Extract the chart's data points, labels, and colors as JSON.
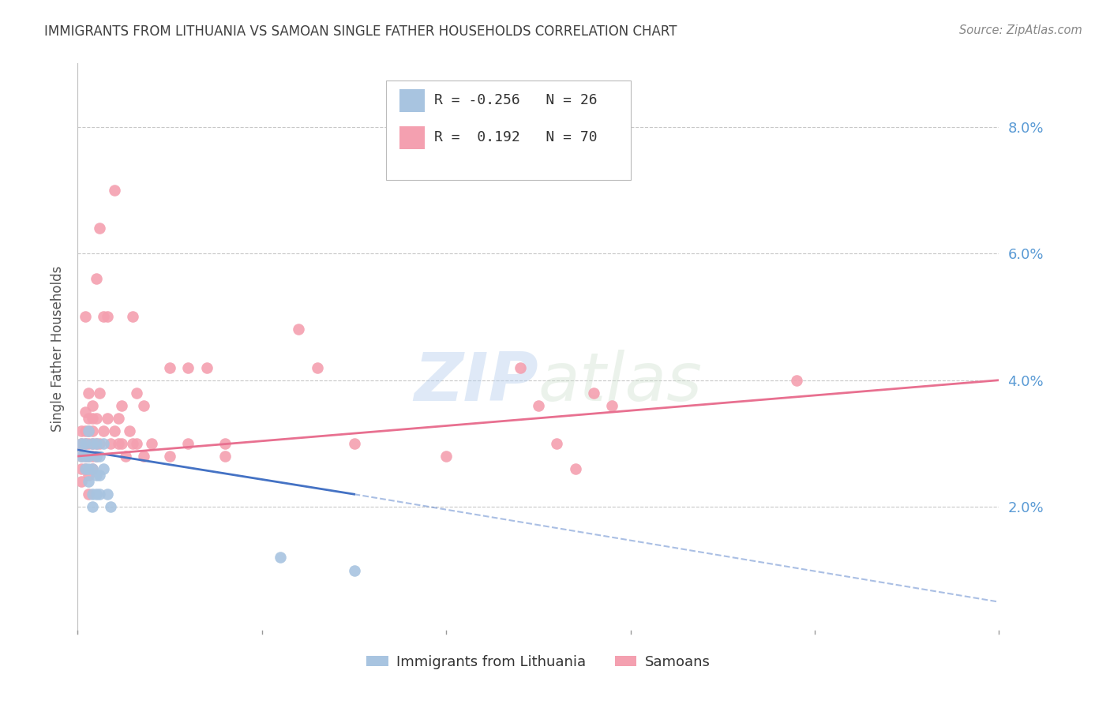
{
  "title": "IMMIGRANTS FROM LITHUANIA VS SAMOAN SINGLE FATHER HOUSEHOLDS CORRELATION CHART",
  "source": "Source: ZipAtlas.com",
  "ylabel": "Single Father Households",
  "ytick_labels": [
    "2.0%",
    "4.0%",
    "6.0%",
    "8.0%"
  ],
  "ytick_values": [
    0.02,
    0.04,
    0.06,
    0.08
  ],
  "xlim": [
    0.0,
    0.25
  ],
  "ylim": [
    0.0,
    0.09
  ],
  "blue_color": "#a8c4e0",
  "pink_color": "#f4a0b0",
  "blue_line_color": "#4472c4",
  "pink_line_color": "#e87090",
  "grid_color": "#c8c8c8",
  "title_color": "#404040",
  "axis_label_color": "#5b9bd5",
  "ylabel_color": "#555555",
  "blue_dots": [
    [
      0.001,
      0.03
    ],
    [
      0.001,
      0.028
    ],
    [
      0.002,
      0.026
    ],
    [
      0.002,
      0.03
    ],
    [
      0.002,
      0.028
    ],
    [
      0.003,
      0.032
    ],
    [
      0.003,
      0.028
    ],
    [
      0.003,
      0.026
    ],
    [
      0.003,
      0.024
    ],
    [
      0.004,
      0.03
    ],
    [
      0.004,
      0.026
    ],
    [
      0.004,
      0.022
    ],
    [
      0.004,
      0.02
    ],
    [
      0.005,
      0.03
    ],
    [
      0.005,
      0.028
    ],
    [
      0.005,
      0.025
    ],
    [
      0.005,
      0.022
    ],
    [
      0.006,
      0.028
    ],
    [
      0.006,
      0.025
    ],
    [
      0.006,
      0.022
    ],
    [
      0.007,
      0.03
    ],
    [
      0.007,
      0.026
    ],
    [
      0.008,
      0.022
    ],
    [
      0.009,
      0.02
    ],
    [
      0.055,
      0.012
    ],
    [
      0.075,
      0.01
    ]
  ],
  "pink_dots": [
    [
      0.001,
      0.03
    ],
    [
      0.001,
      0.032
    ],
    [
      0.001,
      0.028
    ],
    [
      0.001,
      0.026
    ],
    [
      0.001,
      0.024
    ],
    [
      0.002,
      0.035
    ],
    [
      0.002,
      0.032
    ],
    [
      0.002,
      0.03
    ],
    [
      0.002,
      0.028
    ],
    [
      0.002,
      0.05
    ],
    [
      0.002,
      0.026
    ],
    [
      0.003,
      0.038
    ],
    [
      0.003,
      0.034
    ],
    [
      0.003,
      0.032
    ],
    [
      0.003,
      0.03
    ],
    [
      0.003,
      0.028
    ],
    [
      0.003,
      0.025
    ],
    [
      0.003,
      0.022
    ],
    [
      0.004,
      0.036
    ],
    [
      0.004,
      0.034
    ],
    [
      0.004,
      0.032
    ],
    [
      0.004,
      0.03
    ],
    [
      0.004,
      0.028
    ],
    [
      0.004,
      0.026
    ],
    [
      0.005,
      0.056
    ],
    [
      0.005,
      0.034
    ],
    [
      0.005,
      0.03
    ],
    [
      0.005,
      0.028
    ],
    [
      0.006,
      0.064
    ],
    [
      0.006,
      0.038
    ],
    [
      0.006,
      0.03
    ],
    [
      0.007,
      0.05
    ],
    [
      0.007,
      0.032
    ],
    [
      0.008,
      0.05
    ],
    [
      0.008,
      0.034
    ],
    [
      0.009,
      0.03
    ],
    [
      0.01,
      0.07
    ],
    [
      0.01,
      0.032
    ],
    [
      0.011,
      0.034
    ],
    [
      0.011,
      0.03
    ],
    [
      0.012,
      0.036
    ],
    [
      0.012,
      0.03
    ],
    [
      0.013,
      0.028
    ],
    [
      0.014,
      0.032
    ],
    [
      0.015,
      0.05
    ],
    [
      0.015,
      0.03
    ],
    [
      0.016,
      0.038
    ],
    [
      0.016,
      0.03
    ],
    [
      0.018,
      0.036
    ],
    [
      0.018,
      0.028
    ],
    [
      0.02,
      0.03
    ],
    [
      0.025,
      0.042
    ],
    [
      0.025,
      0.028
    ],
    [
      0.03,
      0.042
    ],
    [
      0.03,
      0.03
    ],
    [
      0.035,
      0.042
    ],
    [
      0.04,
      0.03
    ],
    [
      0.04,
      0.028
    ],
    [
      0.06,
      0.048
    ],
    [
      0.065,
      0.042
    ],
    [
      0.075,
      0.03
    ],
    [
      0.1,
      0.028
    ],
    [
      0.12,
      0.042
    ],
    [
      0.125,
      0.036
    ],
    [
      0.13,
      0.03
    ],
    [
      0.135,
      0.026
    ],
    [
      0.14,
      0.038
    ],
    [
      0.145,
      0.036
    ],
    [
      0.195,
      0.04
    ]
  ],
  "blue_line": {
    "x0": 0.0,
    "y0": 0.029,
    "x1": 0.075,
    "y1": 0.022,
    "x1_dash": 0.25,
    "y1_dash": 0.005
  },
  "pink_line": {
    "x0": 0.0,
    "y0": 0.028,
    "x1": 0.25,
    "y1": 0.04
  }
}
